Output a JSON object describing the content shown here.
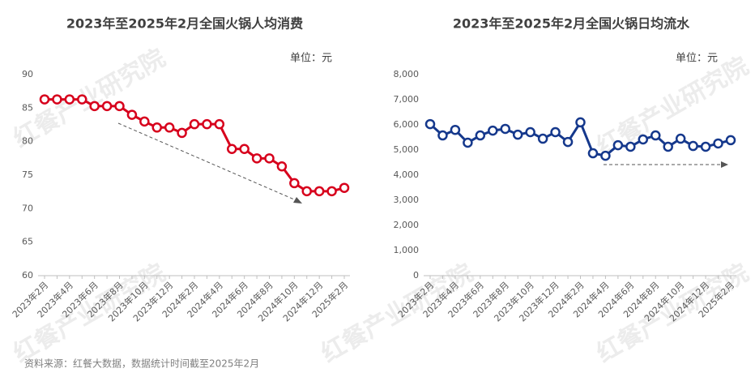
{
  "chart_data": [
    {
      "type": "line",
      "title": "2023年至2025年2月全国火锅人均消费",
      "unit_label": "单位：元",
      "categories": [
        "2023年2月",
        null,
        "2023年4月",
        null,
        "2023年6月",
        null,
        "2023年8月",
        null,
        "2023年10月",
        null,
        "2023年12月",
        null,
        "2024年2月",
        null,
        "2024年4月",
        null,
        "2024年6月",
        null,
        "2024年8月",
        null,
        "2024年10月",
        null,
        "2024年12月",
        null,
        "2025年2月"
      ],
      "values": [
        86.3,
        86.3,
        86.3,
        86.3,
        85.3,
        85.3,
        85.3,
        84.0,
        83.0,
        82.1,
        82.1,
        81.3,
        82.6,
        82.6,
        82.6,
        78.9,
        78.9,
        77.5,
        77.5,
        76.3,
        73.8,
        72.6,
        72.6,
        72.6,
        73.1
      ],
      "color": "#d7001c",
      "ylim": [
        60,
        90
      ],
      "yticks": [
        60,
        65,
        70,
        75,
        80,
        85,
        90
      ],
      "grid": false
    },
    {
      "type": "line",
      "title": "2023年至2025年2月全国火锅日均流水",
      "unit_label": "单位：元",
      "categories": [
        "2023年2月",
        null,
        "2023年4月",
        null,
        "2023年6月",
        null,
        "2023年8月",
        null,
        "2023年10月",
        null,
        "2023年12月",
        null,
        "2024年2月",
        null,
        "2024年4月",
        null,
        "2024年6月",
        null,
        "2024年8月",
        null,
        "2024年10月",
        null,
        "2024年12月",
        null,
        "2025年2月"
      ],
      "values": [
        6030,
        5580,
        5800,
        5290,
        5580,
        5770,
        5840,
        5610,
        5710,
        5450,
        5710,
        5320,
        6100,
        4870,
        4770,
        5190,
        5130,
        5420,
        5580,
        5130,
        5450,
        5160,
        5130,
        5260,
        5390
      ],
      "color": "#15388c",
      "ylim": [
        0,
        8000
      ],
      "yticks": [
        0,
        {
          "value": 1000,
          "label": "1,000"
        },
        {
          "value": 2000,
          "label": "2,000"
        },
        {
          "value": 3000,
          "label": "3,000"
        },
        {
          "value": 4000,
          "label": "4,000"
        },
        {
          "value": 5000,
          "label": "5,000"
        },
        {
          "value": 6000,
          "label": "6,000"
        },
        {
          "value": 7000,
          "label": "7,000"
        },
        {
          "value": 8000,
          "label": "8,000"
        }
      ],
      "grid": false
    }
  ],
  "watermark": "红餐产业研究院",
  "source": "资料来源：红餐大数据，数据统计时间截至2025年2月"
}
